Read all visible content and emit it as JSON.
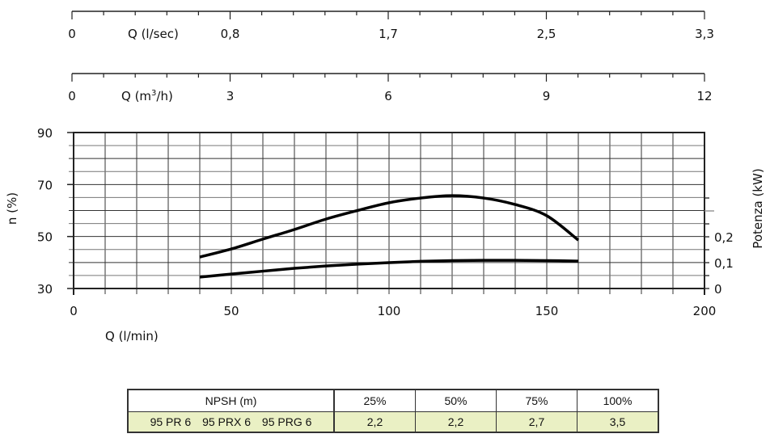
{
  "chart_data": {
    "type": "line",
    "top_axes": [
      {
        "label": "Q (l/sec)",
        "ticks": [
          "0",
          "0,8",
          "1,7",
          "2,5",
          "3,3"
        ]
      },
      {
        "label": "Q (m³/h)",
        "label_base": "Q (m",
        "label_sup": "3",
        "label_tail": "/h)",
        "ticks": [
          "0",
          "3",
          "6",
          "9",
          "12"
        ]
      }
    ],
    "xlabel": "Q (l/min)",
    "xlim": [
      0,
      200
    ],
    "xticks": [
      "0",
      "50",
      "100",
      "150",
      "200"
    ],
    "ylabel": "n (%)",
    "ylim": [
      30,
      90
    ],
    "yticks": [
      "30",
      "50",
      "70",
      "90"
    ],
    "y2label": "Potenza (kW)",
    "y2lim": [
      0,
      0.6
    ],
    "y2ticks": [
      "0",
      "0,1",
      "0,2"
    ],
    "grid": true,
    "series": [
      {
        "axis": "left",
        "x": [
          40,
          50,
          60,
          70,
          80,
          90,
          100,
          110,
          120,
          130,
          140,
          150,
          160
        ],
        "y": [
          42.1,
          45.2,
          49,
          52.7,
          56.7,
          60,
          63,
          64.8,
          65.7,
          64.8,
          62.3,
          58,
          48.6
        ]
      },
      {
        "axis": "right",
        "x": [
          40,
          50,
          60,
          70,
          80,
          90,
          100,
          110,
          120,
          130,
          140,
          150,
          160
        ],
        "y": [
          0.044,
          0.056,
          0.067,
          0.078,
          0.087,
          0.094,
          0.1,
          0.105,
          0.108,
          0.109,
          0.109,
          0.108,
          0.106
        ]
      }
    ]
  },
  "npsh_table": {
    "header": "NPSH (m)",
    "columns": [
      "25%",
      "50%",
      "75%",
      "100%"
    ],
    "models": [
      "95 PR 6",
      "95 PRX 6",
      "95 PRG 6"
    ],
    "values": [
      "2,2",
      "2,2",
      "2,7",
      "3,5"
    ]
  }
}
